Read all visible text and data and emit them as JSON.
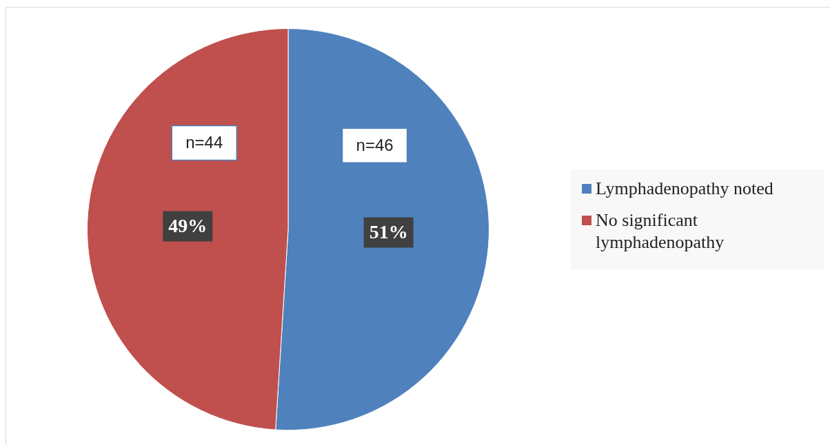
{
  "chart_data": {
    "type": "pie",
    "categories": [
      "Lymphadenopathy noted",
      "No significant lymphadenopathy"
    ],
    "values": [
      51,
      49
    ],
    "colors": [
      "#4f81bd",
      "#c0504d"
    ],
    "value_labels": [
      "51%",
      "49%"
    ],
    "annotations": [
      {
        "text": "n=46",
        "x": "Lymphadenopathy noted"
      },
      {
        "text": "n=44",
        "x": "No significant lymphadenopathy"
      }
    ],
    "legend": "right"
  }
}
